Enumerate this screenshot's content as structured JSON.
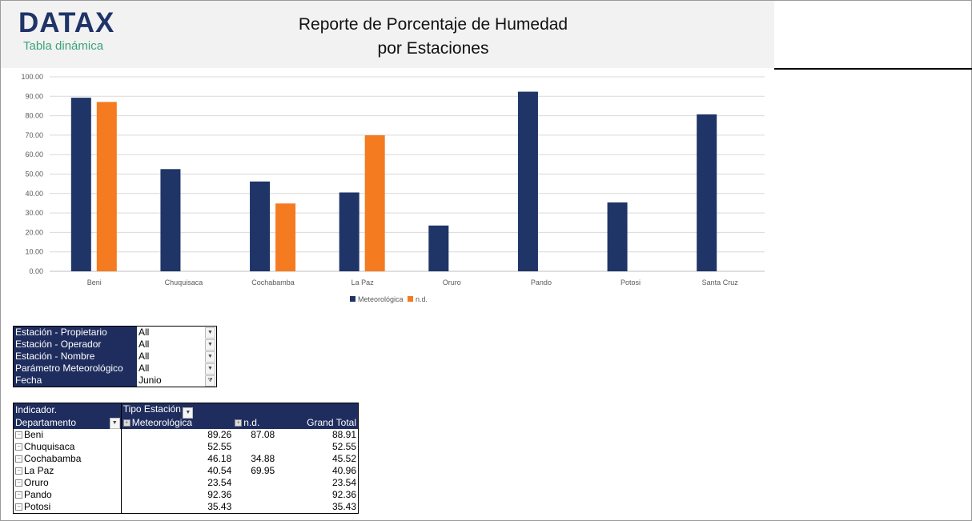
{
  "header": {
    "logo": "DATAX",
    "subtitle": "Tabla dinámica",
    "title_line1": "Reporte de Porcentaje de Humedad",
    "title_line2": "por Estaciones"
  },
  "colors": {
    "meteorologica": "#1f3467",
    "nd": "#f47b20",
    "header_bg": "#f2f2f2",
    "pivot_header": "#1f2d5e"
  },
  "chart_data": {
    "type": "bar",
    "categories": [
      "Beni",
      "Chuquisaca",
      "Cochabamba",
      "La Paz",
      "Oruro",
      "Pando",
      "Potosi",
      "Santa Cruz"
    ],
    "series": [
      {
        "name": "Meteorológica",
        "values": [
          89.26,
          52.55,
          46.18,
          40.54,
          23.54,
          92.36,
          35.43,
          80.7
        ]
      },
      {
        "name": "n.d.",
        "values": [
          87.08,
          null,
          34.88,
          69.95,
          null,
          null,
          null,
          null
        ]
      }
    ],
    "yticks": [
      "0.00",
      "10.00",
      "20.00",
      "30.00",
      "40.00",
      "50.00",
      "60.00",
      "70.00",
      "80.00",
      "90.00",
      "100.00"
    ],
    "ylim": [
      0,
      100
    ],
    "grid": true,
    "legend": "bottom"
  },
  "filters": [
    {
      "label": "Estación - Propietario",
      "value": "All",
      "icon": "dropdown-arrow"
    },
    {
      "label": "Estación - Operador",
      "value": "All",
      "icon": "dropdown-arrow"
    },
    {
      "label": "Estación - Nombre",
      "value": "All",
      "icon": "dropdown-arrow"
    },
    {
      "label": "Parámetro Meteorológico",
      "value": "All",
      "icon": "dropdown-arrow"
    },
    {
      "label": "Fecha",
      "value": "Junio",
      "icon": "filter-icon"
    }
  ],
  "pivot": {
    "corner": "Indicador.",
    "col_field": "Tipo Estación",
    "row_field": "Departamento",
    "columns": [
      "Meteorológica",
      "n.d.",
      "Grand Total"
    ],
    "rows": [
      {
        "name": "Beni",
        "m": "89.26",
        "nd": "87.08",
        "t": "88.91"
      },
      {
        "name": "Chuquisaca",
        "m": "52.55",
        "nd": "",
        "t": "52.55"
      },
      {
        "name": "Cochabamba",
        "m": "46.18",
        "nd": "34.88",
        "t": "45.52"
      },
      {
        "name": "La Paz",
        "m": "40.54",
        "nd": "69.95",
        "t": "40.96"
      },
      {
        "name": "Oruro",
        "m": "23.54",
        "nd": "",
        "t": "23.54"
      },
      {
        "name": "Pando",
        "m": "92.36",
        "nd": "",
        "t": "92.36"
      },
      {
        "name": "Potosi",
        "m": "35.43",
        "nd": "",
        "t": "35.43"
      }
    ]
  }
}
